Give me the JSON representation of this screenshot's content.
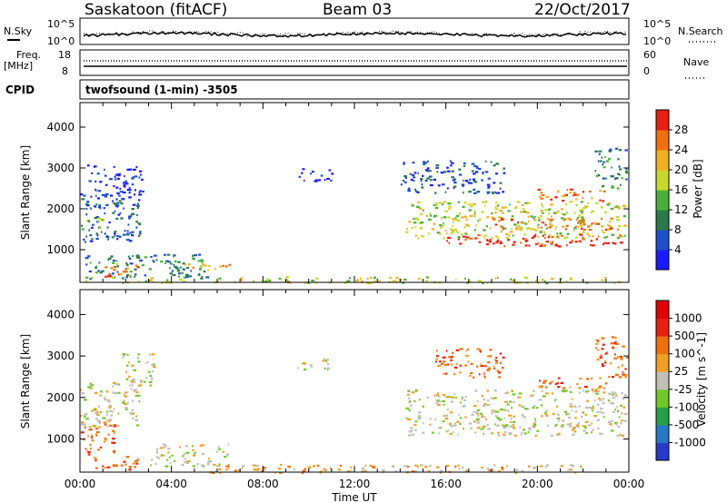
{
  "header": {
    "station": "Saskatoon (fitACF)",
    "beam": "Beam 03",
    "date": "22/Oct/2017"
  },
  "params_panel": {
    "nsky_label": "N.Sky",
    "nsearch_label": "N.Search",
    "noise_ticks_left": [
      "10^5",
      "10^0"
    ],
    "noise_ticks_right": [
      "10^5",
      "10^0"
    ],
    "freq_label": "Freq.",
    "freq_unit": "[MHz]",
    "freq_ticks": [
      "18",
      "8"
    ],
    "nave_label": "Nave",
    "nave_ticks": [
      "60",
      "0"
    ],
    "cpid_label": "CPID",
    "cpid_text": "twofsound (1-min) -3505"
  },
  "chart_data": [
    {
      "type": "heatmap",
      "title": "",
      "xlabel": "",
      "ylabel": "Slant Range [km]",
      "ylim": [
        200,
        4600
      ],
      "xlim_hours": [
        0,
        24
      ],
      "x_ticks": [
        "00:00",
        "04:00",
        "08:00",
        "12:00",
        "16:00",
        "20:00",
        "00:00"
      ],
      "y_ticks": [
        1000,
        2000,
        3000,
        4000
      ],
      "colorbar": {
        "label": "Power [dB]",
        "ticks": [
          "4",
          "8",
          "12",
          "16",
          "20",
          "24",
          "28"
        ],
        "colors": [
          "#1a1aff",
          "#1f4fc9",
          "#2a7a4a",
          "#48b038",
          "#c8d82a",
          "#f0b020",
          "#f07010",
          "#e82010"
        ]
      },
      "echo_regions": [
        {
          "t0": 0.0,
          "t1": 2.6,
          "r0": 1200,
          "r1": 2400,
          "level": 1
        },
        {
          "t0": 0.3,
          "t1": 2.7,
          "r0": 2300,
          "r1": 3100,
          "level": 0
        },
        {
          "t0": 0.0,
          "t1": 1.0,
          "r0": 1500,
          "r1": 1800,
          "level": 3
        },
        {
          "t0": 0.2,
          "t1": 5.5,
          "r0": 300,
          "r1": 900,
          "level": 2
        },
        {
          "t0": 1.0,
          "t1": 2.5,
          "r0": 350,
          "r1": 700,
          "level": 6
        },
        {
          "t0": 4.5,
          "t1": 6.5,
          "r0": 500,
          "r1": 700,
          "level": 5
        },
        {
          "t0": 0.0,
          "t1": 23.8,
          "r0": 200,
          "r1": 350,
          "level": 4
        },
        {
          "t0": 14.2,
          "t1": 23.8,
          "r0": 1300,
          "r1": 2200,
          "level": 4
        },
        {
          "t0": 16.0,
          "t1": 23.7,
          "r0": 1100,
          "r1": 1400,
          "level": 7
        },
        {
          "t0": 18.0,
          "t1": 23.5,
          "r0": 1500,
          "r1": 1800,
          "level": 6
        },
        {
          "t0": 20.0,
          "t1": 23.0,
          "r0": 2200,
          "r1": 2500,
          "level": 6
        },
        {
          "t0": 14.0,
          "t1": 18.5,
          "r0": 2400,
          "r1": 3200,
          "level": 1
        },
        {
          "t0": 22.5,
          "t1": 23.9,
          "r0": 2500,
          "r1": 3500,
          "level": 2
        },
        {
          "t0": 9.5,
          "t1": 11.0,
          "r0": 2700,
          "r1": 3000,
          "level": 0
        }
      ]
    },
    {
      "type": "heatmap",
      "title": "",
      "xlabel": "Time UT",
      "ylabel": "Slant Range [km]",
      "ylim": [
        200,
        4600
      ],
      "xlim_hours": [
        0,
        24
      ],
      "x_ticks": [
        "00:00",
        "04:00",
        "08:00",
        "12:00",
        "16:00",
        "20:00",
        "00:00"
      ],
      "y_ticks": [
        1000,
        2000,
        3000,
        4000
      ],
      "colorbar": {
        "label": "Velocity [m s^-1]",
        "ticks": [
          "1000",
          "500",
          "100",
          "25",
          "-25",
          "-100",
          "-500",
          "-1000"
        ],
        "colors": [
          "#2838c8",
          "#2878c8",
          "#28a048",
          "#70c828",
          "#c0c0b8",
          "#f0a020",
          "#f07010",
          "#e82010",
          "#e00000"
        ]
      },
      "echo_regions": [
        {
          "t0": 0.0,
          "t1": 2.6,
          "r0": 1300,
          "r1": 2400,
          "level": 4
        },
        {
          "t0": 1.8,
          "t1": 3.2,
          "r0": 2300,
          "r1": 3100,
          "level": 4
        },
        {
          "t0": 0.0,
          "t1": 1.5,
          "r0": 600,
          "r1": 1500,
          "level": 6
        },
        {
          "t0": 0.5,
          "t1": 2.5,
          "r0": 250,
          "r1": 600,
          "level": 6
        },
        {
          "t0": 3.0,
          "t1": 6.5,
          "r0": 350,
          "r1": 900,
          "level": 4
        },
        {
          "t0": 5.5,
          "t1": 22.0,
          "r0": 200,
          "r1": 400,
          "level": 5
        },
        {
          "t0": 14.2,
          "t1": 23.8,
          "r0": 1100,
          "r1": 2200,
          "level": 4
        },
        {
          "t0": 15.5,
          "t1": 18.5,
          "r0": 2500,
          "r1": 3200,
          "level": 6
        },
        {
          "t0": 20.0,
          "t1": 23.0,
          "r0": 2200,
          "r1": 2500,
          "level": 6
        },
        {
          "t0": 22.5,
          "t1": 23.9,
          "r0": 2500,
          "r1": 3500,
          "level": 6
        },
        {
          "t0": 9.5,
          "t1": 11.0,
          "r0": 2700,
          "r1": 3000,
          "level": 4
        }
      ]
    }
  ]
}
